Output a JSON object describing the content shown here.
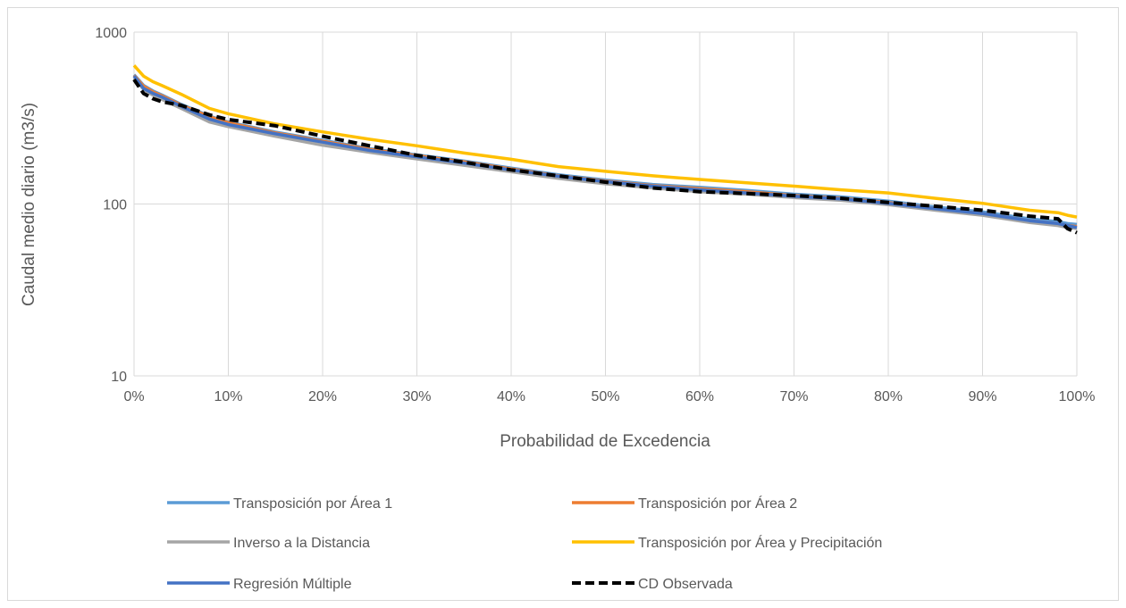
{
  "chart_data": {
    "type": "line",
    "title": "",
    "xlabel": "Probabilidad de Excedencia",
    "ylabel": "Caudal medio diario (m3/s)",
    "x_scale": "linear",
    "y_scale": "log",
    "xlim": [
      0,
      100
    ],
    "ylim": [
      10,
      1000
    ],
    "x_ticks": [
      "0%",
      "10%",
      "20%",
      "30%",
      "40%",
      "50%",
      "60%",
      "70%",
      "80%",
      "90%",
      "100%"
    ],
    "x_tick_values": [
      0,
      10,
      20,
      30,
      40,
      50,
      60,
      70,
      80,
      90,
      100
    ],
    "y_ticks": [
      "10",
      "100",
      "1000"
    ],
    "y_tick_values": [
      10,
      100,
      1000
    ],
    "grid": "vertical",
    "legend_position": "bottom",
    "x": [
      0,
      1,
      2,
      3,
      5,
      8,
      10,
      15,
      20,
      25,
      30,
      35,
      40,
      45,
      50,
      55,
      60,
      65,
      70,
      75,
      80,
      85,
      90,
      95,
      98,
      99,
      100
    ],
    "series": [
      {
        "name": "Transposición por Área 1",
        "color": "#5b9bd5",
        "dash": "solid",
        "values": [
          565,
          490,
          455,
          430,
          380,
          325,
          300,
          262,
          235,
          210,
          193,
          178,
          162,
          148,
          138,
          130,
          125,
          120,
          114,
          110,
          104,
          96,
          90,
          82,
          79,
          77,
          76
        ]
      },
      {
        "name": "Transposición por Área 2",
        "color": "#ed7d31",
        "dash": "solid",
        "values": [
          560,
          485,
          450,
          425,
          376,
          322,
          297,
          259,
          232,
          208,
          191,
          176,
          160,
          146,
          136,
          128,
          123,
          118,
          112,
          108,
          102,
          94,
          88,
          80,
          77,
          75,
          74
        ]
      },
      {
        "name": "Inverso a la Distancia",
        "color": "#a5a5a5",
        "dash": "solid",
        "values": [
          540,
          465,
          430,
          405,
          360,
          300,
          282,
          248,
          220,
          200,
          183,
          168,
          154,
          141,
          131,
          124,
          118,
          114,
          109,
          105,
          99,
          92,
          86,
          78,
          75,
          73,
          72
        ]
      },
      {
        "name": "Transposición por Área y Precipitación",
        "color": "#ffc000",
        "dash": "solid",
        "values": [
          640,
          555,
          515,
          488,
          435,
          360,
          335,
          292,
          263,
          238,
          218,
          198,
          182,
          165,
          155,
          146,
          139,
          133,
          127,
          121,
          116,
          108,
          101,
          92,
          89,
          86,
          84
        ]
      },
      {
        "name": "Regresión Múltiple",
        "color": "#4472c4",
        "dash": "solid",
        "values": [
          555,
          470,
          440,
          418,
          370,
          312,
          290,
          256,
          229,
          205,
          188,
          173,
          158,
          145,
          135,
          127,
          121,
          116,
          111,
          107,
          101,
          94,
          88,
          80,
          77,
          75,
          73
        ]
      },
      {
        "name": "CD Observada",
        "color": "#000000",
        "dash": "dashed",
        "values": [
          530,
          440,
          410,
          393,
          375,
          330,
          310,
          285,
          248,
          218,
          192,
          175,
          158,
          146,
          134,
          124,
          118,
          115,
          112,
          108,
          102,
          97,
          92,
          85,
          82,
          72,
          68
        ]
      }
    ]
  }
}
